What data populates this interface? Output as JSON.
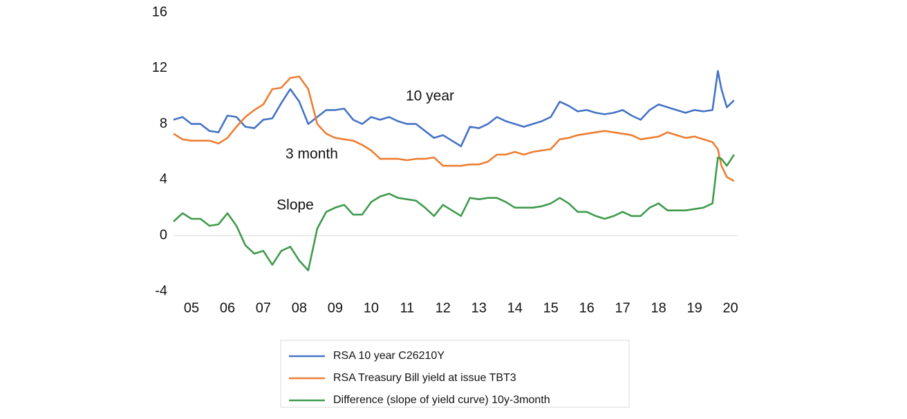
{
  "chart_data": {
    "type": "line",
    "x": [
      5.0,
      5.25,
      5.5,
      5.75,
      6.0,
      6.25,
      6.5,
      6.75,
      7.0,
      7.25,
      7.5,
      7.75,
      8.0,
      8.25,
      8.5,
      8.75,
      9.0,
      9.25,
      9.5,
      9.75,
      10.0,
      10.25,
      10.5,
      10.75,
      11.0,
      11.25,
      11.5,
      11.75,
      12.0,
      12.25,
      12.5,
      12.75,
      13.0,
      13.25,
      13.5,
      13.75,
      14.0,
      14.25,
      14.5,
      14.75,
      15.0,
      15.25,
      15.5,
      15.75,
      16.0,
      16.25,
      16.5,
      16.75,
      17.0,
      17.25,
      17.5,
      17.75,
      18.0,
      18.25,
      18.5,
      18.75,
      19.0,
      19.25,
      19.5,
      19.75,
      20.0,
      20.15,
      20.25,
      20.4,
      20.6
    ],
    "series": [
      {
        "name": "RSA 10 year C26210Y",
        "color": "#4472c4",
        "values": [
          8.3,
          8.5,
          8.0,
          8.0,
          7.5,
          7.4,
          8.6,
          8.5,
          7.8,
          7.7,
          8.3,
          8.4,
          9.5,
          10.5,
          9.6,
          8.0,
          8.5,
          9.0,
          9.0,
          9.1,
          8.3,
          8.0,
          8.5,
          8.3,
          8.5,
          8.2,
          8.0,
          8.0,
          7.5,
          7.0,
          7.2,
          6.8,
          6.4,
          7.8,
          7.7,
          8.0,
          8.5,
          8.2,
          8.0,
          7.8,
          8.0,
          8.2,
          8.5,
          9.6,
          9.3,
          8.9,
          9.0,
          8.8,
          8.7,
          8.8,
          9.0,
          8.6,
          8.3,
          9.0,
          9.4,
          9.2,
          9.0,
          8.8,
          9.0,
          8.9,
          9.0,
          11.8,
          10.5,
          9.2,
          9.7
        ]
      },
      {
        "name": "RSA Treasury Bill yield at issue TBT3",
        "color": "#ed7d31",
        "values": [
          7.3,
          6.9,
          6.8,
          6.8,
          6.8,
          6.6,
          7.0,
          7.8,
          8.5,
          9.0,
          9.4,
          10.5,
          10.6,
          11.3,
          11.4,
          10.5,
          8.0,
          7.3,
          7.0,
          6.9,
          6.8,
          6.5,
          6.1,
          5.5,
          5.5,
          5.5,
          5.4,
          5.5,
          5.5,
          5.6,
          5.0,
          5.0,
          5.0,
          5.1,
          5.1,
          5.3,
          5.8,
          5.8,
          6.0,
          5.8,
          6.0,
          6.1,
          6.2,
          6.9,
          7.0,
          7.2,
          7.3,
          7.4,
          7.5,
          7.4,
          7.3,
          7.2,
          6.9,
          7.0,
          7.1,
          7.4,
          7.2,
          7.0,
          7.1,
          6.9,
          6.7,
          6.2,
          5.0,
          4.2,
          3.9
        ]
      },
      {
        "name": "Difference (slope of yield curve) 10y-3month",
        "color": "#3f9a4c",
        "values": [
          1.0,
          1.6,
          1.2,
          1.2,
          0.7,
          0.8,
          1.6,
          0.7,
          -0.7,
          -1.3,
          -1.1,
          -2.1,
          -1.1,
          -0.8,
          -1.8,
          -2.5,
          0.5,
          1.7,
          2.0,
          2.2,
          1.5,
          1.5,
          2.4,
          2.8,
          3.0,
          2.7,
          2.6,
          2.5,
          2.0,
          1.4,
          2.2,
          1.8,
          1.4,
          2.7,
          2.6,
          2.7,
          2.7,
          2.4,
          2.0,
          2.0,
          2.0,
          2.1,
          2.3,
          2.7,
          2.3,
          1.7,
          1.7,
          1.4,
          1.2,
          1.4,
          1.7,
          1.4,
          1.4,
          2.0,
          2.3,
          1.8,
          1.8,
          1.8,
          1.9,
          2.0,
          2.3,
          5.6,
          5.5,
          5.0,
          5.8
        ]
      }
    ],
    "annotations": [
      "10 year",
      "3 month",
      "Slope"
    ],
    "xlim": [
      5.0,
      20.7
    ],
    "xticks": [
      {
        "value": 5.5,
        "label": "05"
      },
      {
        "value": 6.5,
        "label": "06"
      },
      {
        "value": 7.5,
        "label": "07"
      },
      {
        "value": 8.5,
        "label": "08"
      },
      {
        "value": 9.5,
        "label": "09"
      },
      {
        "value": 10.5,
        "label": "10"
      },
      {
        "value": 11.5,
        "label": "11"
      },
      {
        "value": 12.5,
        "label": "12"
      },
      {
        "value": 13.5,
        "label": "13"
      },
      {
        "value": 14.5,
        "label": "14"
      },
      {
        "value": 15.5,
        "label": "15"
      },
      {
        "value": 16.5,
        "label": "16"
      },
      {
        "value": 17.5,
        "label": "17"
      },
      {
        "value": 18.5,
        "label": "18"
      },
      {
        "value": 19.5,
        "label": "19"
      },
      {
        "value": 20.5,
        "label": "20"
      }
    ],
    "ylim": [
      -4,
      16
    ],
    "yticks": [
      -4,
      0,
      4,
      8,
      12,
      16
    ],
    "grid": false,
    "legend": "bottom"
  }
}
